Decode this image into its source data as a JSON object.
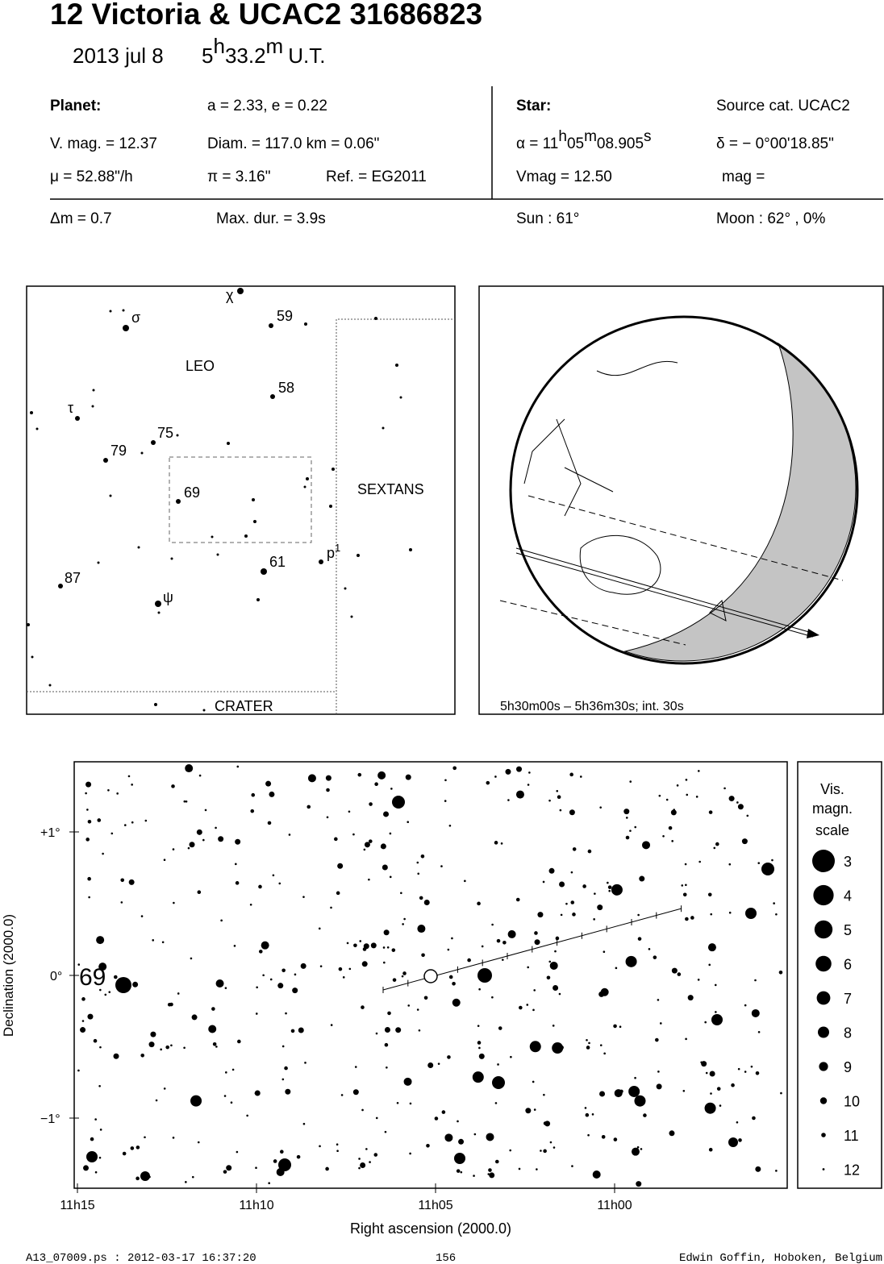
{
  "header": {
    "title": "12 Victoria  &  UCAC2 31686823",
    "date": "2013 jul  8",
    "time": [
      "5",
      "h",
      "33.2",
      "m",
      "U.T."
    ]
  },
  "info": {
    "planet": "Planet:",
    "orbit": "a = 2.33, e = 0.22",
    "vmag": "V. mag. = 12.37",
    "diam": "Diam. = 117.0 km = 0.06\"",
    "mu": "μ =  52.88\"/h",
    "pi": "π =  3.16\"",
    "ref": "Ref. = EG2011",
    "star": "Star:",
    "source": "Source cat.  UCAC2",
    "alpha": [
      "α = 11",
      "h",
      "05",
      "m",
      "08.905",
      "s"
    ],
    "delta": "δ = − 0°00'18.85\"",
    "svmag": "Vmag = 12.50",
    "mag": "mag =",
    "dm": "Δm = 0.7",
    "maxdur": "Max. dur. = 3.9s",
    "sun": "Sun :  61°",
    "moon": "Moon :  62° ,  0%"
  },
  "finder": {
    "labels": [
      "χ",
      "59",
      "σ",
      "LEO",
      "58",
      "τ",
      "75",
      "79",
      "69",
      "SEXTANS",
      "61",
      "87",
      "ψ",
      "CRATER"
    ],
    "p1": [
      "p",
      "1"
    ]
  },
  "globe": {
    "caption": "5h30m00s –  5h36m30s; int. 30s"
  },
  "chart": {
    "yticks": [
      "+1°",
      "0°",
      "−1°"
    ],
    "xticks": [
      "11h15",
      "11h10",
      "11h05",
      "11h00"
    ],
    "xlabel": "Right ascension (2000.0)",
    "ylabel": "Declination (2000.0)",
    "star_label": "69",
    "legend_title": [
      "Vis.",
      "magn.",
      "scale"
    ],
    "magnitudes": [
      3,
      4,
      5,
      6,
      7,
      8,
      9,
      10,
      11,
      12
    ]
  },
  "footer": {
    "file": "A13_07009.ps : 2012-03-17 16:37:20",
    "page": "156",
    "author": "Edwin Goffin, Hoboken, Belgium"
  }
}
